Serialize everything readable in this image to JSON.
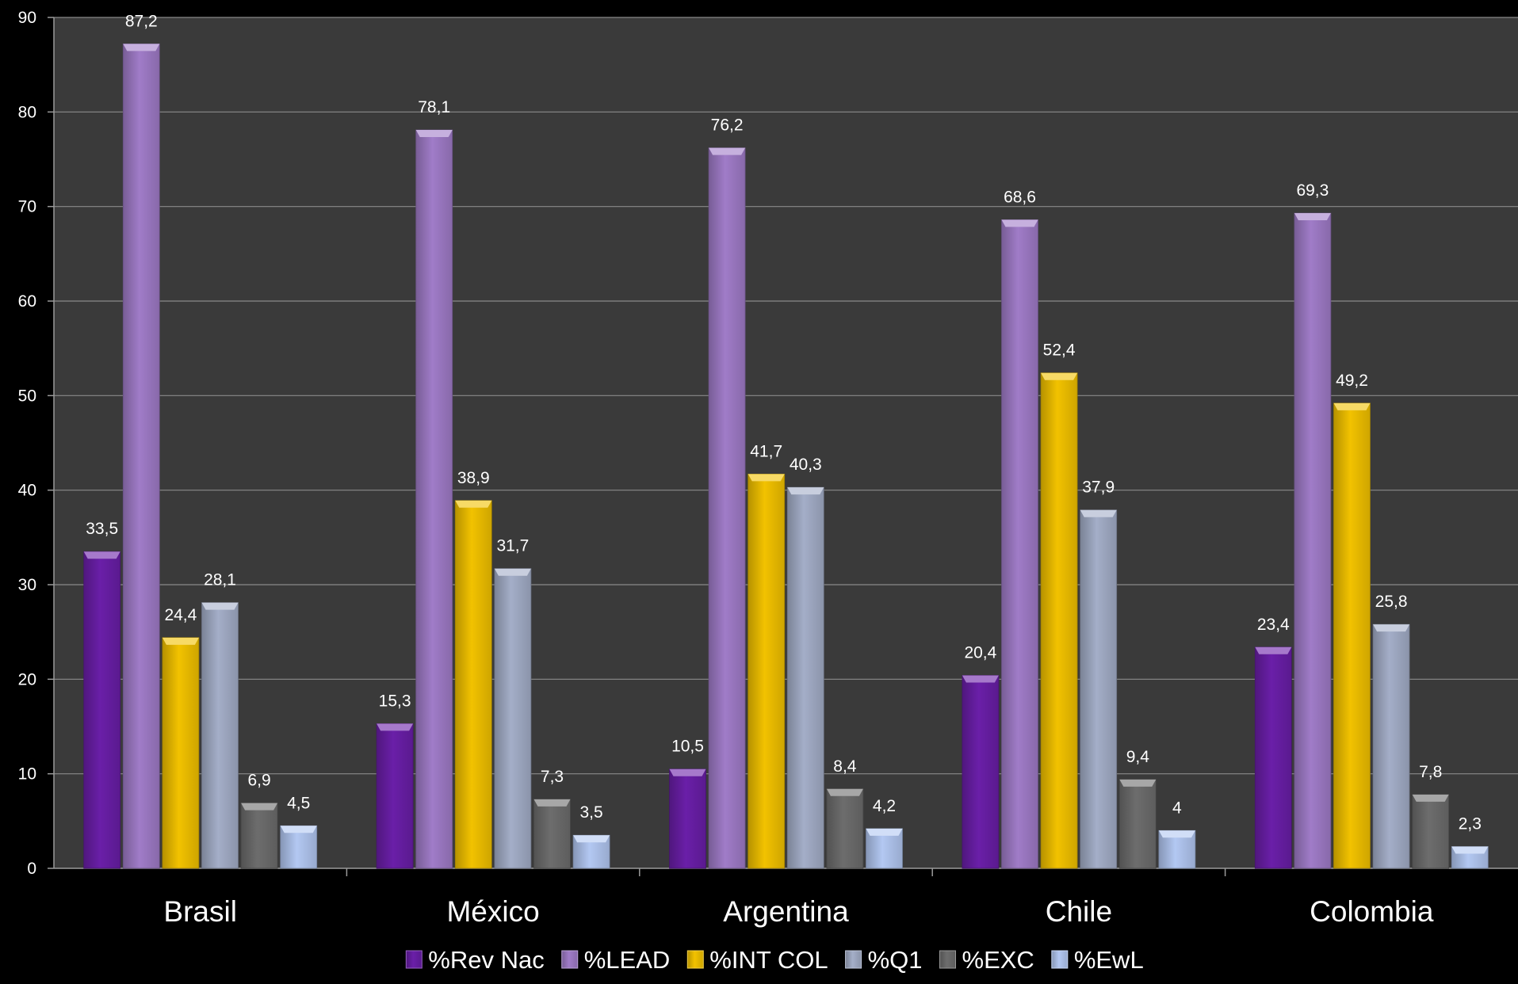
{
  "chart_data": {
    "type": "bar",
    "title": "",
    "xlabel": "",
    "ylabel": "",
    "ylim": [
      0,
      90
    ],
    "yticks": [
      0,
      10,
      20,
      30,
      40,
      50,
      60,
      70,
      80,
      90
    ],
    "grid": true,
    "legend_position": "bottom",
    "categories": [
      "Brasil",
      "México",
      "Argentina",
      "Chile",
      "Colombia"
    ],
    "series": [
      {
        "name": "%Rev Nac",
        "color": "#6a1fa8",
        "values": [
          33.5,
          15.3,
          10.5,
          20.4,
          23.4
        ],
        "labels": [
          "33,5",
          "15,3",
          "10,5",
          "20,4",
          "23,4"
        ]
      },
      {
        "name": "%LEAD",
        "color": "#a07cc8",
        "values": [
          87.2,
          78.1,
          76.2,
          68.6,
          69.3
        ],
        "labels": [
          "87,2",
          "78,1",
          "76,2",
          "68,6",
          "69,3"
        ]
      },
      {
        "name": "%INT COL",
        "color": "#f2c200",
        "values": [
          24.4,
          38.9,
          41.7,
          52.4,
          49.2
        ],
        "labels": [
          "24,4",
          "38,9",
          "41,7",
          "52,4",
          "49,2"
        ]
      },
      {
        "name": "%Q1",
        "color": "#a4aec8",
        "values": [
          28.1,
          31.7,
          40.3,
          37.9,
          25.8
        ],
        "labels": [
          "28,1",
          "31,7",
          "40,3",
          "37,9",
          "25,8"
        ]
      },
      {
        "name": "%EXC",
        "color": "#6d6d6d",
        "values": [
          6.9,
          7.3,
          8.4,
          9.4,
          7.8
        ],
        "labels": [
          "6,9",
          "7,3",
          "8,4",
          "9,4",
          "7,8"
        ]
      },
      {
        "name": "%EwL",
        "color": "#b3c8f2",
        "values": [
          4.5,
          3.5,
          4.2,
          4,
          2.3
        ],
        "labels": [
          "4,5",
          "3,5",
          "4,2",
          "4",
          "2,3"
        ]
      }
    ],
    "colors": {
      "background": "#000000",
      "plot_background": "#3a3a3a",
      "gridline": "#8a8a8a",
      "axis": "#9a9a9a",
      "text": "#ffffff"
    }
  }
}
